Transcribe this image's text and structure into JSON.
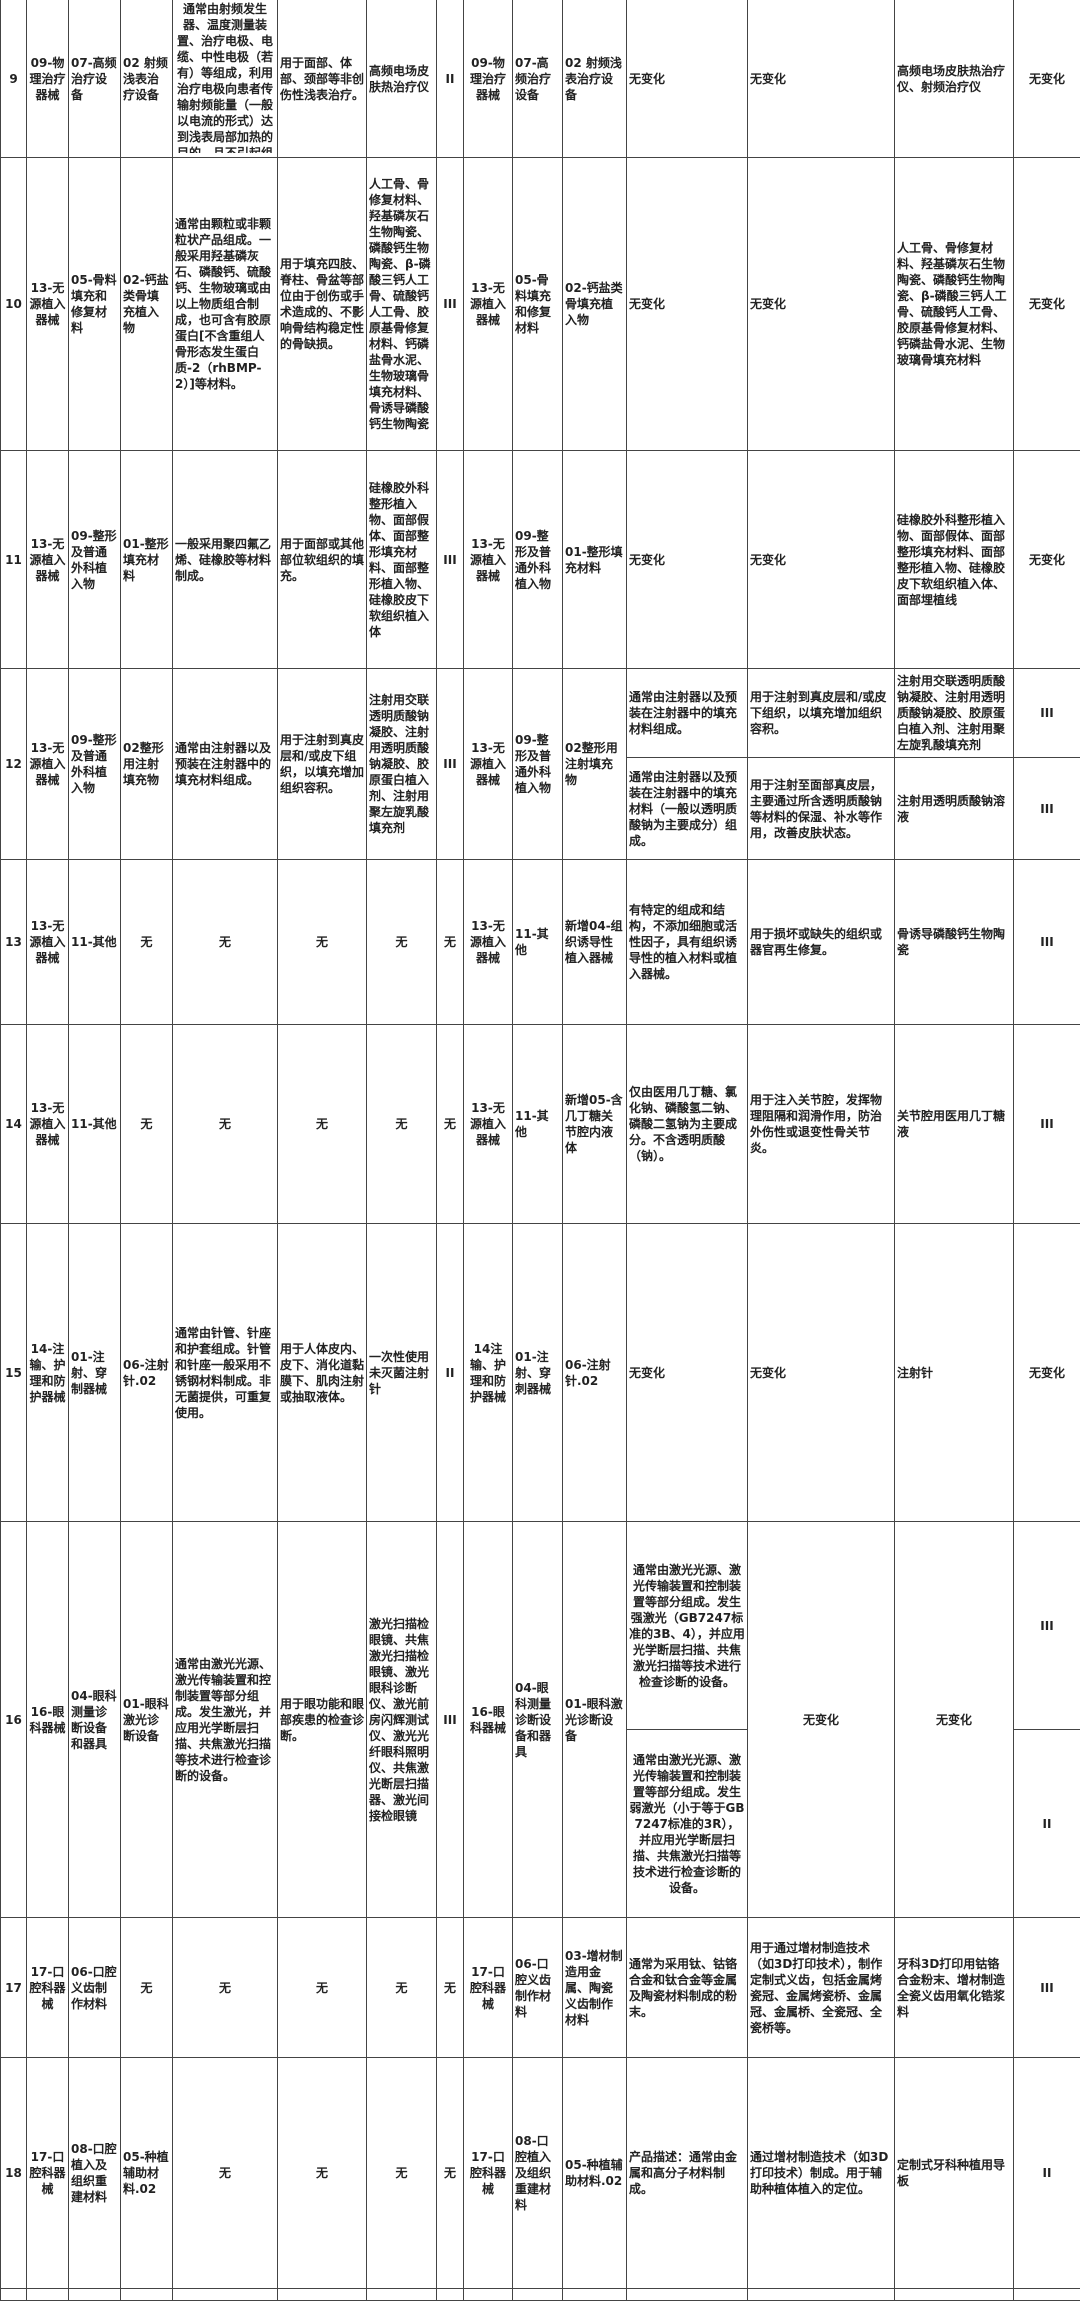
{
  "rows": [
    {
      "cells": [
        "9",
        "09-物理治疗器械",
        "07-高频治疗设备",
        "02 射频浅表治疗设备",
        "通常由射频发生器、温度测量装置、治疗电极、电缆、中性电极（若有）等组成，利用治疗电极向患者传输射频能量（一般以电流的形式）达到浅表局部加热的目的，且不引起组织",
        "用于面部、体部、颈部等非创伤性浅表治疗。",
        "高频电场皮肤热治疗仪",
        "II",
        "09-物理治疗器械",
        "07-高频治疗设备",
        "02 射频浅表治疗设备",
        "无变化",
        "无变化",
        "高频电场皮肤热治疗仪、射频治疗仪",
        "无变化"
      ]
    },
    {
      "cells": [
        "10",
        "13-无源植入器械",
        "05-骨料填充和修复材料",
        "02-钙盐类骨填充植入物",
        "通常由颗粒或非颗粒状产品组成。一般采用羟基磷灰石、磷酸钙、硫酸钙、生物玻璃或由以上物质组合制成，也可含有胶原蛋白[不含重组人骨形态发生蛋白质-2（rhBMP-2）]等材料。",
        "用于填充四肢、脊柱、骨盆等部位由于创伤或手术造成的、不影响骨结构稳定性的骨缺损。",
        "人工骨、骨修复材料、羟基磷灰石生物陶瓷、磷酸钙生物陶瓷、β-磷酸三钙人工骨、硫酸钙人工骨、胶原基骨修复材料、钙磷盐骨水泥、生物玻璃骨填充材料、骨诱导磷酸钙生物陶瓷",
        "III",
        "13-无源植入器械",
        "05-骨料填充和修复材料",
        "02-钙盐类骨填充植入物",
        "无变化",
        "无变化",
        "人工骨、骨修复材料、羟基磷灰石生物陶瓷、磷酸钙生物陶瓷、β-磷酸三钙人工骨、硫酸钙人工骨、胶原基骨修复材料、钙磷盐骨水泥、生物玻璃骨填充材料",
        "无变化"
      ]
    },
    {
      "cells": [
        "11",
        "13-无源植入器械",
        "09-整形及普通外科植入物",
        "01-整形填充材料",
        "一般采用聚四氟乙烯、硅橡胶等材料制成。",
        "用于面部或其他部位软组织的填充。",
        "硅橡胶外科整形植入物、面部假体、面部整形填充材料、面部整形植入物、硅橡胶皮下软组织植入体",
        "III",
        "13-无源植入器械",
        "09-整形及普通外科植入物",
        "01-整形填充材料",
        "无变化",
        "无变化",
        "硅橡胶外科整形植入物、面部假体、面部整形填充材料、面部整形植入物、硅橡胶皮下软组织植入体、面部埋植线",
        "无变化"
      ]
    },
    {
      "cells": [
        "12",
        "13-无源植入器械",
        "09-整形及普通外科植入物",
        "02整形用注射填充物",
        "通常由注射器以及预装在注射器中的填充材料组成。",
        "用于注射到真皮层和/或皮下组织，以填充增加组织容积。",
        "注射用交联透明质酸钠凝胶、注射用透明质酸钠凝胶、胶原蛋白植入剂、注射用聚左旋乳酸填充剂",
        "III",
        "13-无源植入器械",
        "09-整形及普通外科植入物",
        "02整形用注射填充物"
      ],
      "split": [
        {
          "description": "通常由注射器以及预装在注射器中的填充材料组成。",
          "intended_use": "用于注射到真皮层和/或皮下组织，以填充增加组织容积。",
          "examples": "注射用交联透明质酸钠凝胶、注射用透明质酸钠凝胶、胶原蛋白植入剂、注射用聚左旋乳酸填充剂",
          "class": "III"
        },
        {
          "description": "通常由注射器以及预装在注射器中的填充材料（一般以透明质酸钠为主要成分）组成。",
          "intended_use": "用于注射至面部真皮层，主要通过所含透明质酸钠等材料的保湿、补水等作用，改善皮肤状态。",
          "examples": "注射用透明质酸钠溶液",
          "class": "III"
        }
      ]
    },
    {
      "cells": [
        "13",
        "13-无源植入器械",
        "11-其他",
        "无",
        "无",
        "无",
        "无",
        "无",
        "13-无源植入器械",
        "11-其他",
        "新增04-组织诱导性植入器械",
        "有特定的组成和结构，不添加细胞或活性因子，具有组织诱导性的植入材料或植入器械。",
        "用于损坏或缺失的组织或器官再生修复。",
        "骨诱导磷酸钙生物陶瓷",
        "III"
      ]
    },
    {
      "cells": [
        "14",
        "13-无源植入器械",
        "11-其他",
        "无",
        "无",
        "无",
        "无",
        "无",
        "13-无源植入器械",
        "11-其他",
        "新增05-含几丁糖关节腔内液体",
        "仅由医用几丁糖、氯化钠、磷酸氢二钠、磷酸二氢钠为主要成分。不含透明质酸（钠）。",
        "用于注入关节腔，发挥物理阻隔和润滑作用，防治外伤性或退变性骨关节炎。",
        "关节腔用医用几丁糖液",
        "III"
      ]
    },
    {
      "cells": [
        "15",
        "14-注输、护理和防护器械",
        "01-注射、穿制器械",
        "06-注射针.02",
        "通常由针管、针座和护套组成。针管和针座一般采用不锈钢材料制成。非无菌提供，可重复使用。",
        "用于人体皮内、皮下、消化道黏膜下、肌肉注射或抽取液体。",
        "一次性使用未灭菌注射针",
        "II",
        "14注输、护理和防护器械",
        "01-注射、穿刺器械",
        "06-注射针.02",
        "无变化",
        "无变化",
        "注射针",
        "无变化"
      ]
    },
    {
      "cells": [
        "16",
        "16-眼科器械",
        "04-眼科测量诊断设备和器具",
        "01-眼科激光诊断设备",
        "通常由激光光源、激光传输装置和控制装置等部分组成。发生激光，并应用光学断层扫描、共焦激光扫描等技术进行检查诊断的设备。",
        "用于眼功能和眼部疾患的检查诊断。",
        "激光扫描检眼镜、共焦激光扫描检眼镜、激光眼科诊断仪、激光前房闪辉测试仪、激光光纤眼科照明仪、共焦激光断层扫描器、激光间接检眼镜",
        "III",
        "16-眼科器械",
        "04-眼科测量诊断设备和器具",
        "01-眼科激光诊断设备"
      ],
      "split_desc": [
        {
          "description": "通常由激光光源、激光传输装置和控制装置等部分组成。发生强激光（GB7247标准的3B、4），并应用光学断层扫描、共焦激光扫描等技术进行检查诊断的设备。",
          "class": "III"
        },
        {
          "description": "通常由激光光源、激光传输装置和控制装置等部分组成。发生弱激光（小于等于GB7247标准的3R），并应用光学断层扫描、共焦激光扫描等技术进行检查诊断的设备。",
          "class": "II"
        }
      ],
      "intended_use": "无变化",
      "examples": "无变化"
    },
    {
      "cells": [
        "17",
        "17-口腔科器械",
        "06-口腔义齿制作材料",
        "无",
        "无",
        "无",
        "无",
        "无",
        "17-口腔科器械",
        "06-口腔义齿制作材料",
        "03-增材制造用金属、陶瓷义齿制作材料",
        "通常为采用钛、钴铬合金和钛合金等金属及陶瓷材料制成的粉末。",
        "用于通过增材制造技术（如3D打印技术），制作定制式义齿，包括金属烤瓷冠、金属烤瓷桥、金属冠、金属桥、全瓷冠、全瓷桥等。",
        "牙科3D打印用钴铬合金粉末、增材制造全瓷义齿用氧化锆浆料",
        "III"
      ]
    },
    {
      "cells": [
        "18",
        "17-口腔科器械",
        "08-口腔植入及组织重建材料",
        "05-种植辅助材料.02",
        "无",
        "无",
        "无",
        "无",
        "17-口腔科器械",
        "08-口腔植入及组织重建材料",
        "05-种植辅助材料.02",
        "产品描述：通常由金属和高分子材料制成。",
        "通过增材制造技术（如3D打印技术）制成。用于辅助种植体植入的定位。",
        "定制式牙科种植用导板",
        "II"
      ]
    }
  ]
}
